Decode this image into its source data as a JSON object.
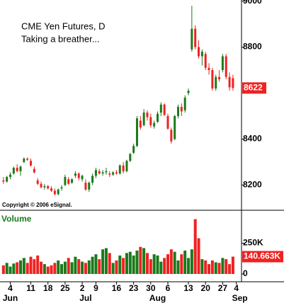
{
  "chart_data": {
    "type": "candlestick",
    "title": "CME Yen Futures, D",
    "subtitle": "Taking a breather...",
    "copyright": "Copyright © 2006 eSignal.",
    "volume_label": "Volume",
    "up_color": "#1a7a1a",
    "down_color": "#ee2222",
    "ylim": [
      8090,
      9005
    ],
    "yticks": [
      8200,
      8400,
      8800,
      9000
    ],
    "price_marker": 8622,
    "vlim": [
      0,
      500000
    ],
    "vticks": [
      0,
      {
        "value": 250000,
        "label": "250K"
      }
    ],
    "volume_marker": {
      "value": 140663,
      "label": "140.663K"
    },
    "xlim": [
      -1,
      69.5
    ],
    "xticks": [
      {
        "value": 2,
        "label": "4"
      },
      {
        "value": 8,
        "label": "11"
      },
      {
        "value": 13,
        "label": "18"
      },
      {
        "value": 18,
        "label": "25"
      },
      {
        "value": 23,
        "label": "2"
      },
      {
        "value": 27,
        "label": "9"
      },
      {
        "value": 33,
        "label": "16"
      },
      {
        "value": 38,
        "label": "23"
      },
      {
        "value": 43,
        "label": "30"
      },
      {
        "value": 48,
        "label": "6"
      },
      {
        "value": 54,
        "label": "13"
      },
      {
        "value": 59,
        "label": "20"
      },
      {
        "value": 64,
        "label": "27"
      },
      {
        "value": 68,
        "label": "4"
      }
    ],
    "months": [
      {
        "value": 2,
        "label": "Jun"
      },
      {
        "value": 24,
        "label": "Jul"
      },
      {
        "value": 45,
        "label": "Aug"
      },
      {
        "value": 69,
        "label": "Sep"
      }
    ],
    "open": [
      8220,
      8215,
      8235,
      8250,
      8275,
      8260,
      8300,
      8315,
      8305,
      8270,
      8220,
      8205,
      8190,
      8195,
      8185,
      8175,
      8160,
      8185,
      8200,
      8225,
      8210,
      8240,
      8250,
      8225,
      8210,
      8180,
      8210,
      8240,
      8260,
      8250,
      8255,
      8250,
      8245,
      8255,
      8250,
      8285,
      8260,
      8305,
      8340,
      8370,
      8480,
      8460,
      8515,
      8495,
      8455,
      8475,
      8515,
      8550,
      8500,
      8440,
      8400,
      8500,
      8540,
      8525,
      8600,
      8790,
      8880,
      8800,
      8760,
      8770,
      8710,
      8700,
      8620,
      8670,
      8700,
      8760,
      8670,
      8665
    ],
    "high": [
      8235,
      8240,
      8255,
      8280,
      8290,
      8285,
      8320,
      8320,
      8315,
      8280,
      8230,
      8215,
      8205,
      8200,
      8195,
      8185,
      8185,
      8200,
      8245,
      8235,
      8230,
      8260,
      8255,
      8245,
      8225,
      8215,
      8250,
      8275,
      8270,
      8265,
      8275,
      8260,
      8260,
      8265,
      8290,
      8300,
      8310,
      8340,
      8380,
      8500,
      8500,
      8530,
      8525,
      8510,
      8480,
      8520,
      8560,
      8555,
      8510,
      8450,
      8505,
      8550,
      8555,
      8590,
      8620,
      8980,
      8895,
      8830,
      8790,
      8780,
      8730,
      8710,
      8680,
      8700,
      8770,
      8770,
      8690,
      8680
    ],
    "low": [
      8205,
      8210,
      8225,
      8245,
      8255,
      8240,
      8295,
      8305,
      8280,
      8250,
      8200,
      8185,
      8180,
      8180,
      8170,
      8155,
      8155,
      8175,
      8195,
      8200,
      8205,
      8230,
      8220,
      8215,
      8175,
      8170,
      8200,
      8230,
      8245,
      8240,
      8245,
      8235,
      8240,
      8245,
      8245,
      8250,
      8255,
      8300,
      8335,
      8365,
      8440,
      8455,
      8480,
      8450,
      8445,
      8470,
      8500,
      8500,
      8440,
      8380,
      8395,
      8490,
      8500,
      8515,
      8590,
      8780,
      8790,
      8750,
      8720,
      8700,
      8680,
      8610,
      8610,
      8650,
      8690,
      8660,
      8610,
      8610
    ],
    "close": [
      8215,
      8235,
      8245,
      8275,
      8260,
      8280,
      8315,
      8310,
      8285,
      8255,
      8205,
      8190,
      8195,
      8185,
      8175,
      8160,
      8180,
      8190,
      8235,
      8205,
      8225,
      8250,
      8230,
      8240,
      8180,
      8210,
      8240,
      8265,
      8250,
      8255,
      8260,
      8245,
      8255,
      8250,
      8285,
      8260,
      8305,
      8335,
      8370,
      8490,
      8450,
      8515,
      8495,
      8460,
      8470,
      8510,
      8550,
      8505,
      8445,
      8390,
      8500,
      8540,
      8520,
      8580,
      8610,
      8880,
      8800,
      8760,
      8780,
      8710,
      8700,
      8620,
      8670,
      8660,
      8760,
      8670,
      8625,
      8622
    ],
    "volume": [
      70000,
      90000,
      60000,
      85000,
      95000,
      110000,
      130000,
      90000,
      140000,
      120000,
      150000,
      100000,
      80000,
      60000,
      70000,
      90000,
      110000,
      80000,
      100000,
      130000,
      95000,
      140000,
      120000,
      100000,
      90000,
      110000,
      140000,
      160000,
      120000,
      200000,
      210000,
      170000,
      90000,
      110000,
      150000,
      130000,
      170000,
      180000,
      150000,
      190000,
      220000,
      210000,
      170000,
      120000,
      160000,
      150000,
      100000,
      130000,
      160000,
      200000,
      180000,
      110000,
      160000,
      190000,
      130000,
      200000,
      445000,
      290000,
      120000,
      110000,
      80000,
      110000,
      95000,
      90000,
      130000,
      120000,
      80000,
      140663
    ]
  }
}
